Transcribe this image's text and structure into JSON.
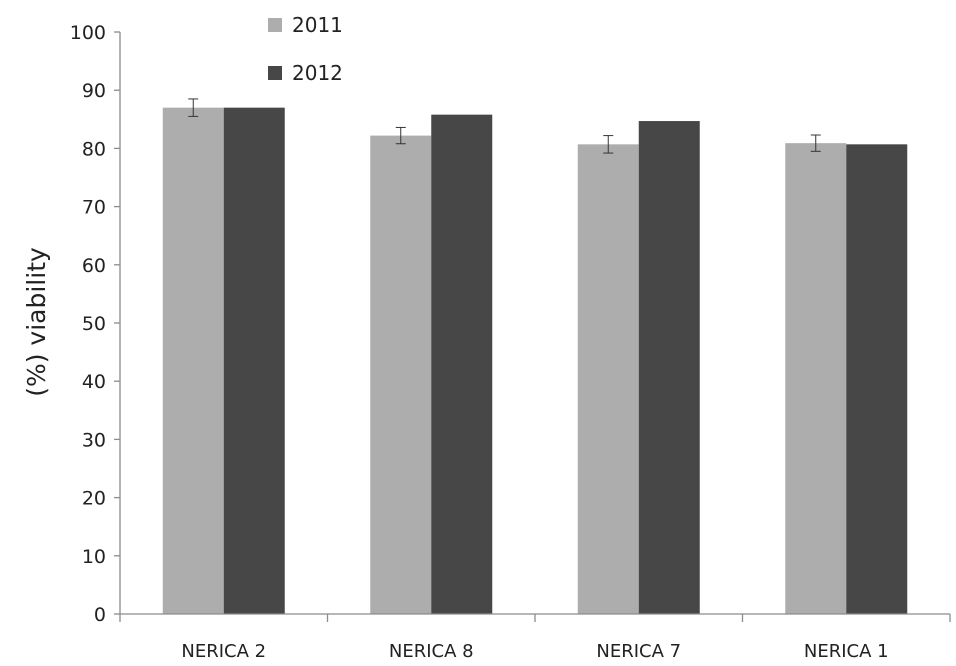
{
  "chart_data": {
    "type": "bar",
    "title": "",
    "xlabel": "",
    "ylabel": "(%) viability",
    "ylim": [
      0,
      100
    ],
    "yticks": [
      0,
      10,
      20,
      30,
      40,
      50,
      60,
      70,
      80,
      90,
      100
    ],
    "grid": false,
    "legend_position": "top-left",
    "categories": [
      "NERICA 2",
      "NERICA 8",
      "NERICA 7",
      "NERICA 1"
    ],
    "series": [
      {
        "name": "2011",
        "color": "#adadad",
        "values": [
          87.0,
          82.2,
          80.7,
          80.9
        ],
        "errors": [
          1.5,
          1.4,
          1.5,
          1.4
        ]
      },
      {
        "name": "2012",
        "color": "#474747",
        "values": [
          87.0,
          85.8,
          84.7,
          80.7
        ]
      }
    ]
  }
}
